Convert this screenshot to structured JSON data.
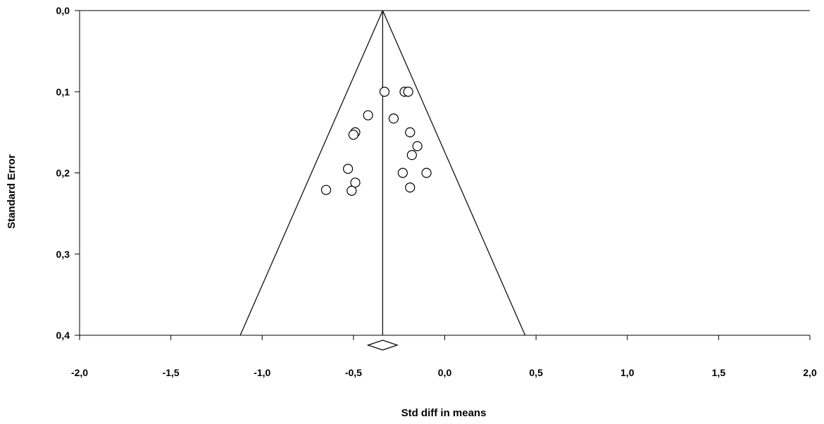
{
  "chart_data": {
    "type": "scatter",
    "subtype": "funnel-plot",
    "title": "",
    "xlabel": "Std diff in means",
    "ylabel": "Standard Error",
    "xlim": [
      -2.0,
      2.0
    ],
    "ylim": [
      0.0,
      0.4
    ],
    "y_inverted": true,
    "x_ticks": [
      "-2,0",
      "-1,5",
      "-1,0",
      "-0,5",
      "0,0",
      "0,5",
      "1,0",
      "1,5",
      "2,0"
    ],
    "x_tick_values": [
      -2.0,
      -1.5,
      -1.0,
      -0.5,
      0.0,
      0.5,
      1.0,
      1.5,
      2.0
    ],
    "y_ticks": [
      "0,0",
      "0,1",
      "0,2",
      "0,3",
      "0,4"
    ],
    "y_tick_values": [
      0.0,
      0.1,
      0.2,
      0.3,
      0.4
    ],
    "grid": false,
    "pooled_effect": -0.34,
    "funnel_at_max_se": [
      -1.12,
      0.44
    ],
    "summary_diamond": {
      "center": -0.34,
      "lower": -0.42,
      "upper": -0.26
    },
    "marker": "open-circle",
    "line_color": "#000000",
    "background_color": "#ffffff",
    "points": [
      {
        "x": -0.33,
        "y": 0.1
      },
      {
        "x": -0.22,
        "y": 0.1
      },
      {
        "x": -0.2,
        "y": 0.1
      },
      {
        "x": -0.42,
        "y": 0.129
      },
      {
        "x": -0.28,
        "y": 0.133
      },
      {
        "x": -0.49,
        "y": 0.15
      },
      {
        "x": -0.5,
        "y": 0.153
      },
      {
        "x": -0.19,
        "y": 0.15
      },
      {
        "x": -0.15,
        "y": 0.167
      },
      {
        "x": -0.18,
        "y": 0.178
      },
      {
        "x": -0.53,
        "y": 0.195
      },
      {
        "x": -0.23,
        "y": 0.2
      },
      {
        "x": -0.1,
        "y": 0.2
      },
      {
        "x": -0.49,
        "y": 0.212
      },
      {
        "x": -0.19,
        "y": 0.218
      },
      {
        "x": -0.65,
        "y": 0.221
      },
      {
        "x": -0.51,
        "y": 0.222
      }
    ]
  }
}
